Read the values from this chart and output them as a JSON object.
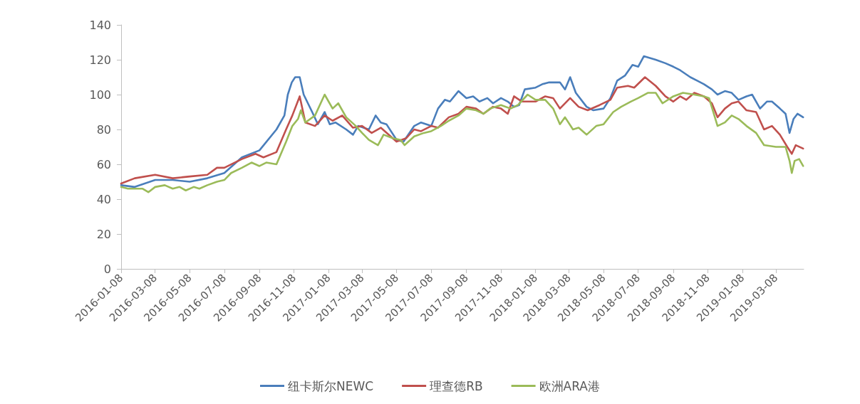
{
  "chart_data": {
    "type": "line",
    "xlim": [
      "2016-01-08",
      "2019-04-26"
    ],
    "xticks": [
      "2016-01-08",
      "2016-03-08",
      "2016-05-08",
      "2016-07-08",
      "2016-09-08",
      "2016-11-08",
      "2017-01-08",
      "2017-03-08",
      "2017-05-08",
      "2017-07-08",
      "2017-09-08",
      "2017-11-08",
      "2018-01-08",
      "2018-03-08",
      "2018-05-08",
      "2018-07-08",
      "2018-09-08",
      "2018-11-08",
      "2019-01-08",
      "2019-03-08"
    ],
    "ylim": [
      0,
      140
    ],
    "yticks": [
      0,
      20,
      40,
      60,
      80,
      100,
      120,
      140
    ],
    "grid": false,
    "legend": "bottom",
    "marker": "none",
    "line_style": "solid",
    "series": [
      {
        "name": "纽卡斯尔NEWC",
        "color": "#4a7ebb",
        "x": [
          "2016-01-08",
          "2016-02-01",
          "2016-03-08",
          "2016-04-08",
          "2016-05-08",
          "2016-06-08",
          "2016-07-08",
          "2016-08-08",
          "2016-09-08",
          "2016-10-08",
          "2016-10-22",
          "2016-10-28",
          "2016-11-04",
          "2016-11-10",
          "2016-11-18",
          "2016-11-25",
          "2016-12-10",
          "2016-12-20",
          "2017-01-01",
          "2017-01-10",
          "2017-01-20",
          "2017-02-08",
          "2017-02-20",
          "2017-03-01",
          "2017-03-20",
          "2017-04-01",
          "2017-04-10",
          "2017-04-20",
          "2017-05-08",
          "2017-05-20",
          "2017-06-08",
          "2017-06-20",
          "2017-07-08",
          "2017-07-20",
          "2017-08-01",
          "2017-08-10",
          "2017-08-25",
          "2017-09-08",
          "2017-09-20",
          "2017-10-01",
          "2017-10-15",
          "2017-10-25",
          "2017-11-08",
          "2017-11-20",
          "2017-12-01",
          "2017-12-10",
          "2017-12-20",
          "2018-01-08",
          "2018-01-20",
          "2018-02-01",
          "2018-02-20",
          "2018-03-01",
          "2018-03-10",
          "2018-03-20",
          "2018-04-08",
          "2018-04-20",
          "2018-05-08",
          "2018-05-20",
          "2018-06-01",
          "2018-06-15",
          "2018-06-28",
          "2018-07-08",
          "2018-07-18",
          "2018-08-08",
          "2018-08-25",
          "2018-09-08",
          "2018-09-20",
          "2018-10-08",
          "2018-10-20",
          "2018-11-01",
          "2018-11-15",
          "2018-11-25",
          "2018-12-08",
          "2018-12-20",
          "2019-01-01",
          "2019-01-15",
          "2019-01-25",
          "2019-02-08",
          "2019-02-20",
          "2019-03-01",
          "2019-03-15",
          "2019-03-25",
          "2019-04-01",
          "2019-04-08",
          "2019-04-15",
          "2019-04-25"
        ],
        "values": [
          48,
          47,
          51,
          51,
          50,
          52,
          55,
          64,
          68,
          80,
          88,
          100,
          107,
          110,
          110,
          100,
          90,
          83,
          90,
          83,
          84,
          80,
          77,
          82,
          80,
          88,
          84,
          83,
          74,
          73,
          82,
          84,
          82,
          92,
          97,
          96,
          102,
          98,
          99,
          96,
          98,
          95,
          98,
          96,
          93,
          94,
          103,
          104,
          106,
          107,
          107,
          103,
          110,
          101,
          93,
          91,
          92,
          98,
          108,
          111,
          117,
          116,
          122,
          120,
          118,
          116,
          114,
          110,
          108,
          106,
          103,
          100,
          102,
          101,
          97,
          99,
          100,
          92,
          96,
          96,
          92,
          89,
          78,
          86,
          89,
          87
        ]
      },
      {
        "name": "理查德RB",
        "color": "#c0504d",
        "x": [
          "2016-01-08",
          "2016-02-01",
          "2016-03-08",
          "2016-04-08",
          "2016-05-08",
          "2016-06-08",
          "2016-06-25",
          "2016-07-08",
          "2016-08-08",
          "2016-09-01",
          "2016-09-15",
          "2016-10-08",
          "2016-10-25",
          "2016-11-05",
          "2016-11-18",
          "2016-11-28",
          "2016-12-15",
          "2017-01-01",
          "2017-01-15",
          "2017-02-01",
          "2017-02-20",
          "2017-03-08",
          "2017-03-25",
          "2017-04-10",
          "2017-05-08",
          "2017-05-25",
          "2017-06-08",
          "2017-06-20",
          "2017-07-08",
          "2017-07-20",
          "2017-08-08",
          "2017-08-25",
          "2017-09-08",
          "2017-09-25",
          "2017-10-08",
          "2017-10-25",
          "2017-11-08",
          "2017-11-20",
          "2017-12-01",
          "2017-12-15",
          "2018-01-08",
          "2018-01-25",
          "2018-02-08",
          "2018-02-20",
          "2018-03-10",
          "2018-03-25",
          "2018-04-10",
          "2018-05-01",
          "2018-05-20",
          "2018-06-01",
          "2018-06-20",
          "2018-07-01",
          "2018-07-20",
          "2018-08-08",
          "2018-08-25",
          "2018-09-08",
          "2018-09-20",
          "2018-10-01",
          "2018-10-15",
          "2018-11-01",
          "2018-11-15",
          "2018-11-25",
          "2018-12-08",
          "2018-12-20",
          "2019-01-01",
          "2019-01-15",
          "2019-02-01",
          "2019-02-15",
          "2019-03-01",
          "2019-03-15",
          "2019-03-28",
          "2019-04-05",
          "2019-04-12",
          "2019-04-25"
        ],
        "values": [
          49,
          52,
          54,
          52,
          53,
          54,
          58,
          58,
          63,
          66,
          64,
          67,
          80,
          88,
          99,
          84,
          82,
          88,
          85,
          88,
          81,
          82,
          78,
          81,
          73,
          75,
          80,
          79,
          82,
          81,
          87,
          89,
          93,
          92,
          89,
          93,
          92,
          89,
          99,
          96,
          96,
          99,
          98,
          92,
          98,
          93,
          91,
          94,
          97,
          104,
          105,
          104,
          110,
          105,
          99,
          96,
          99,
          97,
          101,
          99,
          95,
          87,
          92,
          95,
          96,
          91,
          90,
          80,
          82,
          77,
          70,
          66,
          71,
          69
        ]
      },
      {
        "name": "欧洲ARA港",
        "color": "#9bbb59",
        "x": [
          "2016-01-08",
          "2016-01-20",
          "2016-02-15",
          "2016-02-25",
          "2016-03-08",
          "2016-03-25",
          "2016-04-08",
          "2016-04-20",
          "2016-05-01",
          "2016-05-15",
          "2016-05-25",
          "2016-06-08",
          "2016-06-25",
          "2016-07-08",
          "2016-07-20",
          "2016-08-08",
          "2016-08-25",
          "2016-09-08",
          "2016-09-20",
          "2016-10-08",
          "2016-10-25",
          "2016-11-05",
          "2016-11-15",
          "2016-11-20",
          "2016-11-28",
          "2016-12-15",
          "2017-01-01",
          "2017-01-15",
          "2017-01-25",
          "2017-02-08",
          "2017-02-25",
          "2017-03-08",
          "2017-03-20",
          "2017-04-05",
          "2017-04-15",
          "2017-05-01",
          "2017-05-15",
          "2017-05-22",
          "2017-06-08",
          "2017-06-25",
          "2017-07-08",
          "2017-07-25",
          "2017-08-08",
          "2017-08-25",
          "2017-09-08",
          "2017-09-25",
          "2017-10-08",
          "2017-10-20",
          "2017-11-08",
          "2017-11-25",
          "2017-12-08",
          "2017-12-25",
          "2018-01-08",
          "2018-01-25",
          "2018-02-08",
          "2018-02-20",
          "2018-03-01",
          "2018-03-15",
          "2018-03-25",
          "2018-04-08",
          "2018-04-25",
          "2018-05-08",
          "2018-05-25",
          "2018-06-08",
          "2018-06-25",
          "2018-07-08",
          "2018-07-25",
          "2018-08-08",
          "2018-08-20",
          "2018-09-08",
          "2018-09-25",
          "2018-10-15",
          "2018-11-01",
          "2018-11-10",
          "2018-11-25",
          "2018-12-08",
          "2018-12-20",
          "2019-01-01",
          "2019-01-15",
          "2019-02-01",
          "2019-02-15",
          "2019-03-08",
          "2019-03-25",
          "2019-04-01",
          "2019-04-05",
          "2019-04-10",
          "2019-04-18",
          "2019-04-25"
        ],
        "values": [
          47,
          46,
          46,
          44,
          47,
          48,
          46,
          47,
          45,
          47,
          46,
          48,
          50,
          51,
          55,
          58,
          61,
          59,
          61,
          60,
          73,
          82,
          86,
          91,
          84,
          88,
          100,
          92,
          95,
          87,
          82,
          78,
          74,
          71,
          77,
          75,
          74,
          71,
          76,
          78,
          79,
          82,
          85,
          88,
          92,
          91,
          89,
          92,
          94,
          92,
          94,
          100,
          97,
          97,
          92,
          83,
          87,
          80,
          81,
          77,
          82,
          83,
          90,
          93,
          96,
          98,
          101,
          101,
          95,
          99,
          101,
          100,
          99,
          98,
          82,
          84,
          88,
          86,
          82,
          78,
          71,
          70,
          70,
          62,
          55,
          62,
          63,
          59
        ]
      }
    ]
  }
}
